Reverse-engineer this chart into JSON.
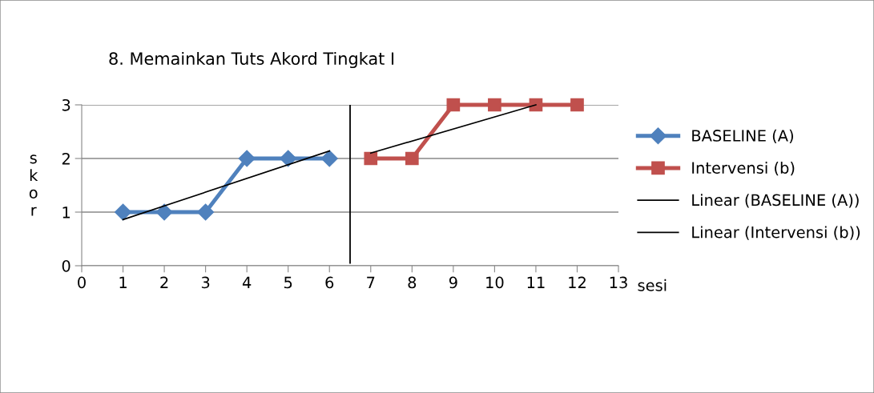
{
  "chart_data": {
    "type": "line",
    "title": "8. Memainkan Tuts Akord Tingkat I",
    "xlabel": "sesi",
    "ylabel": "skor",
    "series": [
      {
        "name": "BASELINE (A)",
        "color": "#4f81bd",
        "x": [
          1,
          2,
          3,
          4,
          5,
          6
        ],
        "values": [
          1,
          1,
          1,
          2,
          2,
          2
        ],
        "marker": "diamond"
      },
      {
        "name": "Intervensi (b)",
        "color": "#c0504d",
        "x": [
          7,
          8,
          9,
          10,
          11,
          12
        ],
        "values": [
          2,
          2,
          3,
          3,
          3,
          3
        ],
        "marker": "square"
      },
      {
        "name": "Linear (BASELINE (A))",
        "color": "#000000",
        "x": [
          1,
          6
        ],
        "values": [
          0.86,
          2.14
        ],
        "marker": "none"
      },
      {
        "name": "Linear (Intervensi (b))",
        "color": "#000000",
        "x": [
          7,
          11
        ],
        "values": [
          2.1,
          3.0
        ],
        "marker": "none"
      }
    ],
    "ref_lines": [
      {
        "axis": "x",
        "value": 6.5,
        "color": "#000000"
      }
    ],
    "xlim": [
      0,
      13
    ],
    "xticks": [
      0,
      1,
      2,
      3,
      4,
      5,
      6,
      7,
      8,
      9,
      10,
      11,
      12,
      13
    ],
    "ylim": [
      0,
      3
    ],
    "yticks": [
      0,
      1,
      2,
      3
    ],
    "grid": "y",
    "legend": "right"
  }
}
